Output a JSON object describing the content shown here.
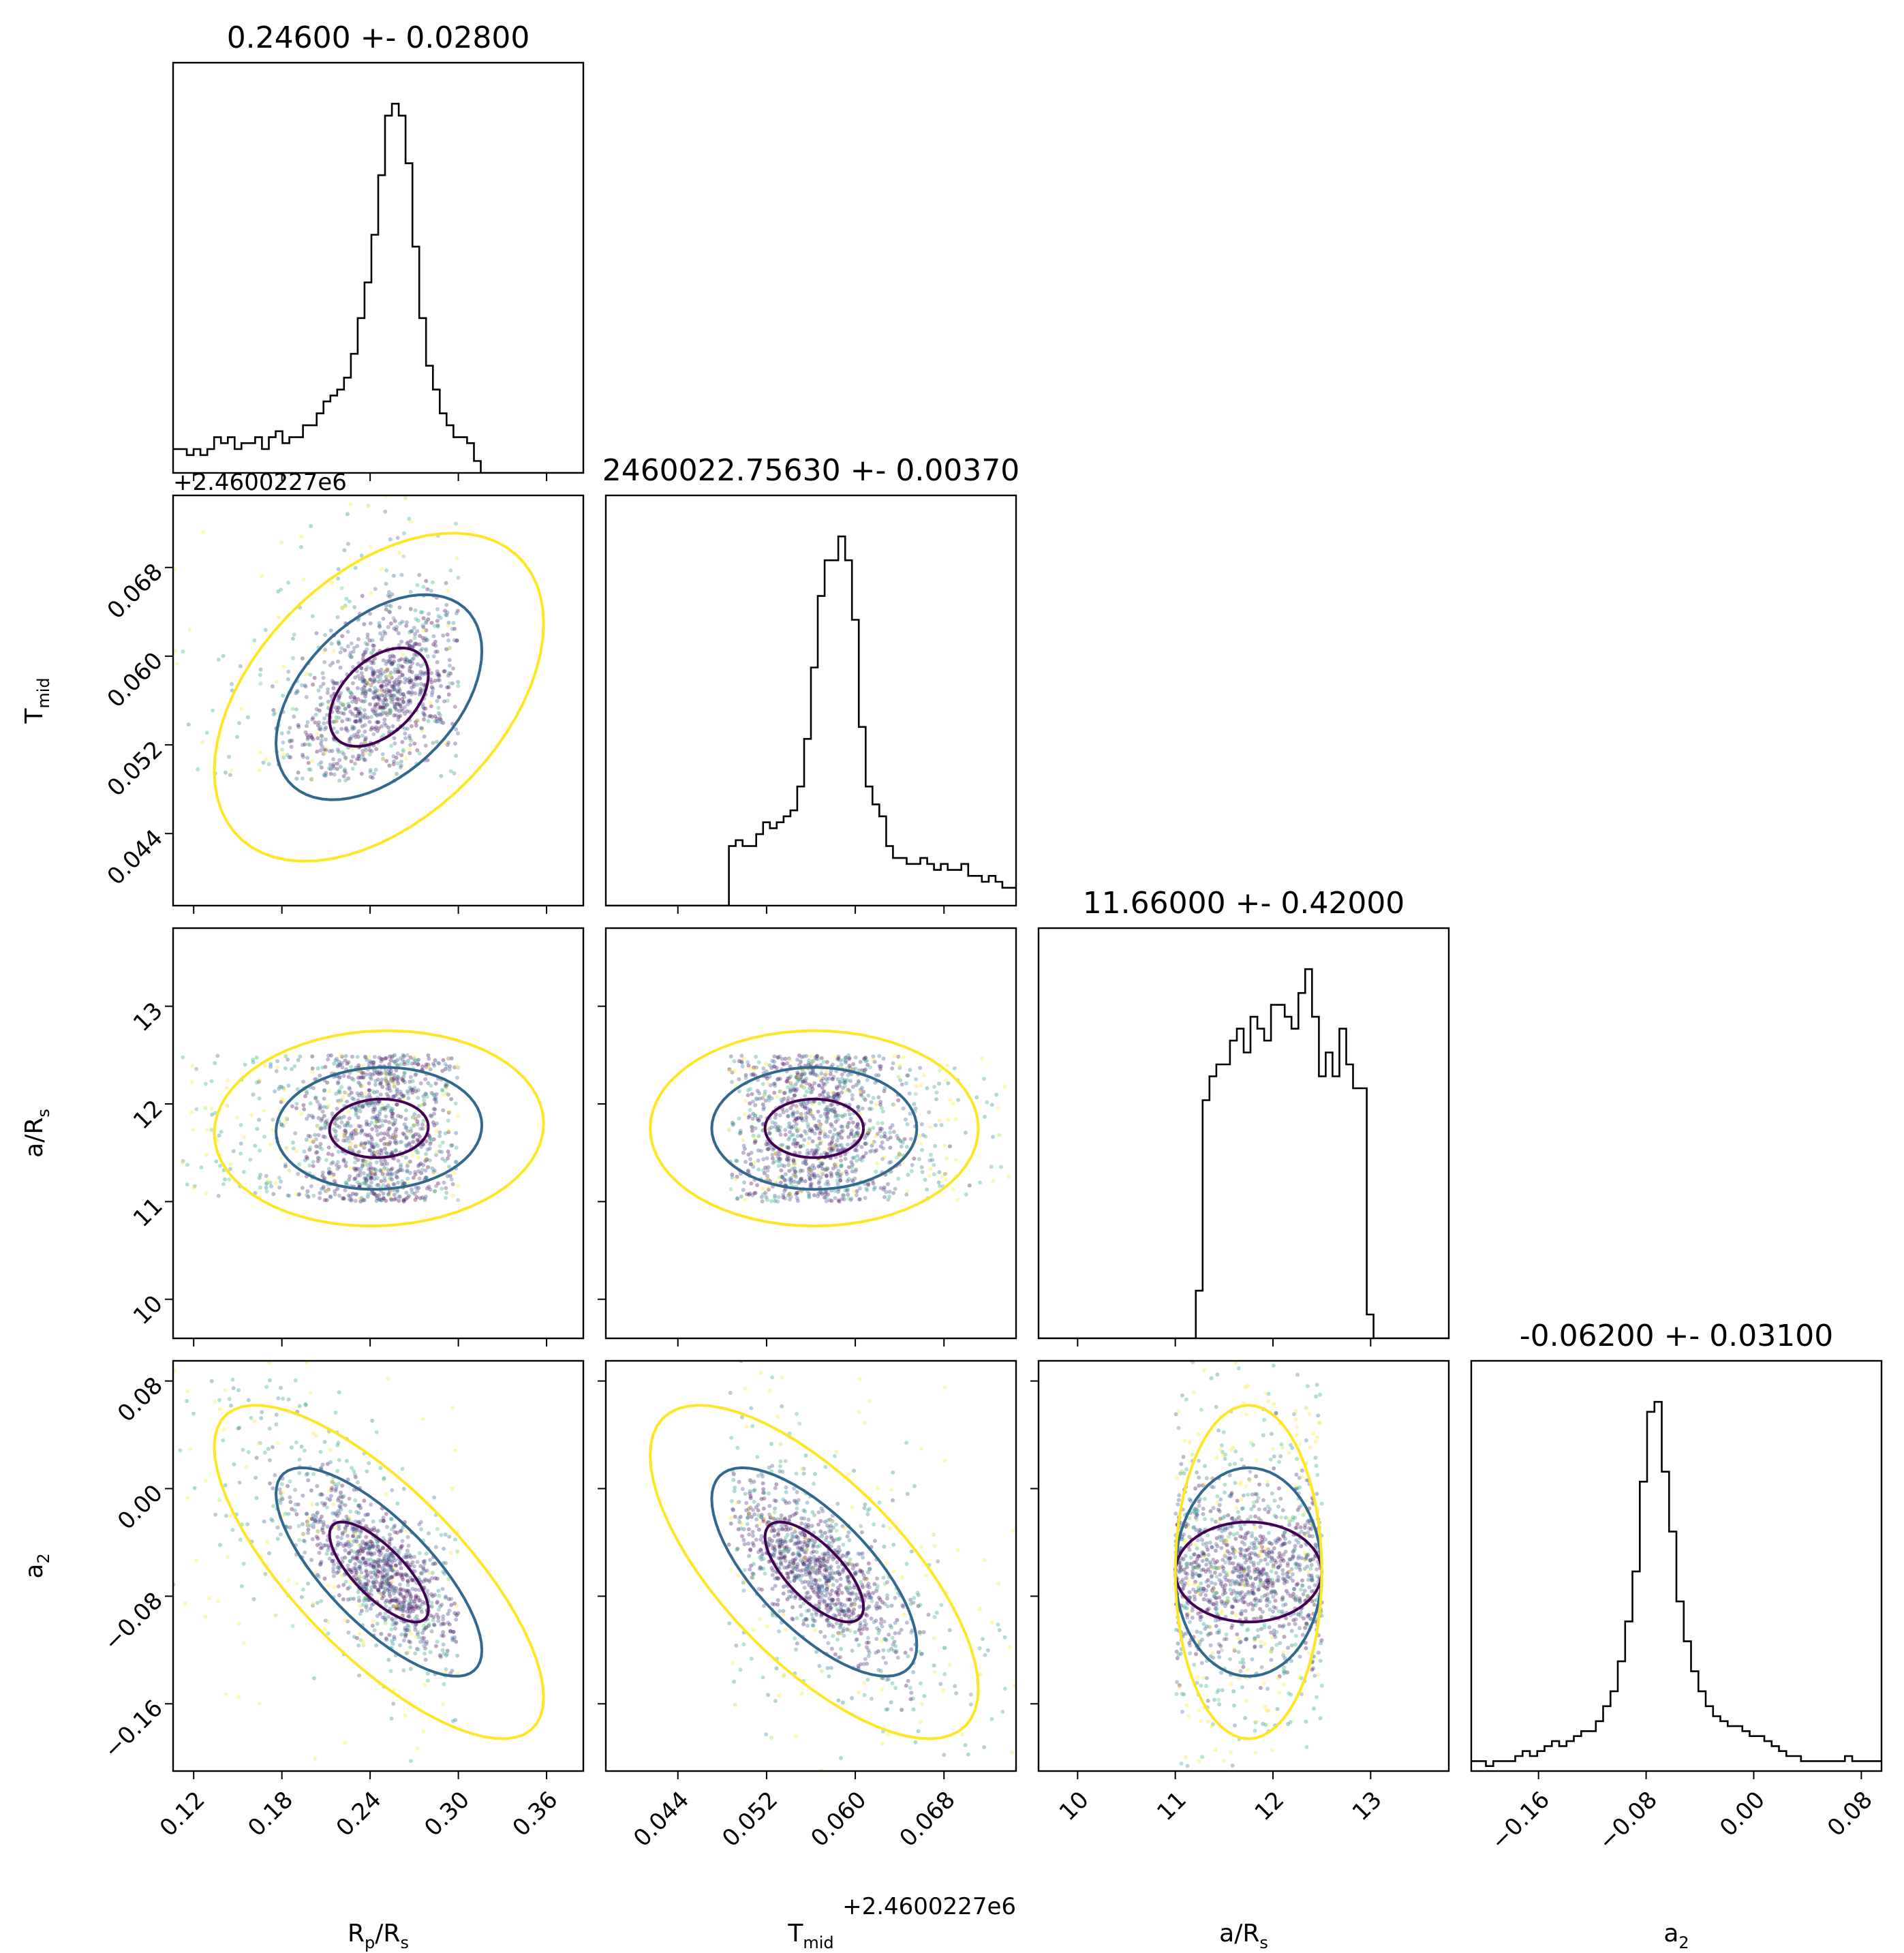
{
  "chart_data": {
    "type": "scatter",
    "kind": "corner plot (posterior samples with 2D density contours and 1D histograms)",
    "colormap": "viridis",
    "parameters": [
      {
        "key": "rp",
        "label": "R_p/R_s",
        "label_main": "R",
        "label_sub": "p",
        "label_tail": "/R",
        "label_sub2": "s",
        "title": "0.24600 +- 0.02800",
        "range": [
          0.106,
          0.385
        ],
        "ticks": [
          "0.12",
          "0.18",
          "0.24",
          "0.30",
          "0.36"
        ],
        "tick_values": [
          0.12,
          0.18,
          0.24,
          0.3,
          0.36
        ],
        "mean": 0.246,
        "sigma": 0.028,
        "sample_range": [
          0.106,
          0.3
        ]
      },
      {
        "key": "tmid",
        "label": "T_mid",
        "label_main": "T",
        "label_sub": "mid",
        "offset_text": "+2.4600227e6",
        "title": "2460022.75630 +- 0.00370",
        "range": [
          0.0375,
          0.0745
        ],
        "ticks": [
          "0.044",
          "0.052",
          "0.060",
          "0.068"
        ],
        "tick_values": [
          0.044,
          0.052,
          0.06,
          0.068
        ],
        "mean": 0.0563,
        "sigma": 0.0037,
        "sample_range": [
          0.0486,
          0.0745
        ]
      },
      {
        "key": "ars",
        "label": "a/R_s",
        "label_main": "a/R",
        "label_sub": "s",
        "title": "11.66000 +- 0.42000",
        "range": [
          9.6,
          13.8
        ],
        "ticks": [
          "10",
          "11",
          "12",
          "13"
        ],
        "tick_values": [
          10,
          11,
          12,
          13
        ],
        "mean": 11.66,
        "sigma": 0.42,
        "sample_range": [
          11.0,
          12.5
        ]
      },
      {
        "key": "a2",
        "label": "a_2",
        "label_main": "a",
        "label_sub": "2",
        "title": "-0.06200 +- 0.03100",
        "range": [
          -0.21,
          0.095
        ],
        "ticks": [
          "−0.16",
          "−0.08",
          "0.00",
          "0.08"
        ],
        "tick_values": [
          -0.16,
          -0.08,
          0.0,
          0.08
        ],
        "mean": -0.062,
        "sigma": 0.031,
        "sample_range": [
          -0.21,
          0.095
        ]
      }
    ],
    "histograms": {
      "rp": [
        2,
        2,
        1.5,
        2,
        1.5,
        2,
        3,
        2.5,
        3,
        2,
        2.5,
        2.5,
        3,
        2,
        3,
        3.5,
        2.5,
        3,
        3,
        4,
        4,
        5,
        6,
        6.5,
        7,
        8,
        10,
        13,
        16,
        20,
        25,
        30,
        31,
        30,
        26,
        19,
        13,
        9,
        7,
        5,
        4,
        3,
        3,
        2.5,
        1,
        0,
        0,
        0,
        0,
        0,
        0,
        0,
        0,
        0,
        0,
        0,
        0,
        0,
        0,
        0
      ],
      "tmid": [
        0,
        0,
        0,
        0,
        0,
        0,
        0,
        0,
        0,
        0,
        0,
        0,
        0,
        0,
        0,
        0,
        0,
        0,
        5,
        5.5,
        5,
        5,
        6,
        7,
        6.5,
        7,
        7.5,
        8,
        10,
        14,
        20,
        26,
        29,
        29,
        31,
        29,
        24,
        15,
        10,
        8.5,
        7.5,
        5,
        4,
        4,
        3.5,
        3.5,
        4,
        3.5,
        3,
        3.5,
        3,
        3,
        3.5,
        2.5,
        2.5,
        2,
        2.5,
        2,
        1.5,
        1.5
      ],
      "ars": [
        0,
        0,
        0,
        0,
        0,
        0,
        0,
        0,
        0,
        0,
        0,
        0,
        0,
        0,
        0,
        0,
        0,
        0,
        0,
        0,
        0,
        0,
        0,
        4,
        20,
        22,
        23,
        23,
        25,
        26,
        24,
        27,
        26,
        25,
        28,
        28,
        27,
        26,
        29,
        31,
        27,
        22,
        24,
        22,
        26,
        23,
        21,
        21,
        2,
        0,
        0,
        0,
        0,
        0,
        0,
        0,
        0,
        0,
        0,
        0
      ],
      "a2": [
        1,
        1,
        0.5,
        1,
        1,
        1,
        1.5,
        2,
        1.5,
        2,
        2.5,
        3,
        2.5,
        3,
        3.5,
        4,
        4,
        5,
        6.5,
        8,
        11,
        15,
        20,
        29,
        36,
        37,
        30,
        24,
        17,
        13,
        10,
        8,
        6.5,
        5.5,
        5,
        4.5,
        4.5,
        4,
        3.5,
        3.5,
        3,
        2.5,
        2,
        1.5,
        1.5,
        1,
        1,
        1,
        1,
        1,
        1,
        1.5,
        1,
        1,
        1,
        1
      ]
    },
    "correlations": {
      "tmid_rp": 0.45,
      "ars_rp": 0.05,
      "ars_tmid": 0.0,
      "a2_rp": -0.75,
      "a2_tmid": -0.7,
      "a2_ars": 0.0
    },
    "contour_levels": [
      "#440154",
      "#31688e",
      "#fde725"
    ],
    "grid": false,
    "legend": "none"
  }
}
